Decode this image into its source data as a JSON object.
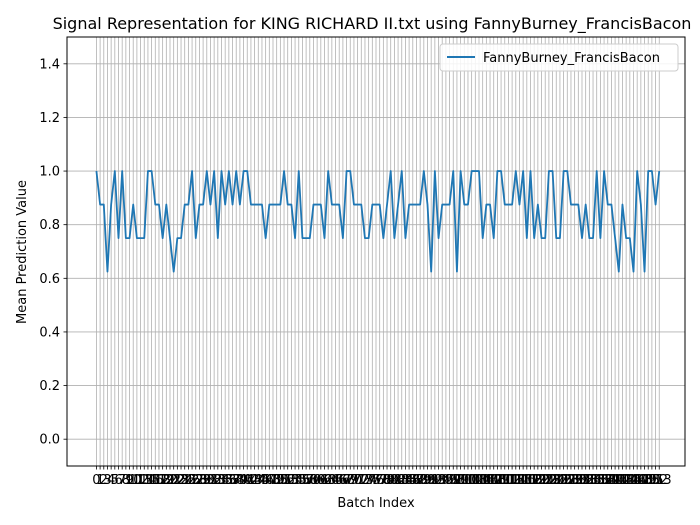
{
  "chart_data": {
    "type": "line",
    "title": "Signal Representation for KING RICHARD II.txt using FannyBurney_FrancisBacon",
    "xlabel": "Batch Index",
    "ylabel": "Mean Prediction Value",
    "ylim": [
      -0.1,
      1.5
    ],
    "xlim": [
      -8,
      160
    ],
    "yticks": [
      "0.0",
      "0.2",
      "0.4",
      "0.6",
      "0.8",
      "1.0",
      "1.2",
      "1.4"
    ],
    "grid": true,
    "legend_position": "top-right",
    "series": [
      {
        "name": "FannyBurney_FrancisBacon",
        "color": "#1f77b4",
        "values": [
          1.0,
          0.875,
          0.875,
          0.625,
          0.875,
          1.0,
          0.75,
          1.0,
          0.75,
          0.75,
          0.875,
          0.75,
          0.75,
          0.75,
          1.0,
          1.0,
          0.875,
          0.875,
          0.75,
          0.875,
          0.75,
          0.625,
          0.75,
          0.75,
          0.875,
          0.875,
          1.0,
          0.75,
          0.875,
          0.875,
          1.0,
          0.875,
          1.0,
          0.75,
          1.0,
          0.875,
          1.0,
          0.875,
          1.0,
          0.875,
          1.0,
          1.0,
          0.875,
          0.875,
          0.875,
          0.875,
          0.75,
          0.875,
          0.875,
          0.875,
          0.875,
          1.0,
          0.875,
          0.875,
          0.75,
          1.0,
          0.75,
          0.75,
          0.75,
          0.875,
          0.875,
          0.875,
          0.75,
          1.0,
          0.875,
          0.875,
          0.875,
          0.75,
          1.0,
          1.0,
          0.875,
          0.875,
          0.875,
          0.75,
          0.75,
          0.875,
          0.875,
          0.875,
          0.75,
          0.875,
          1.0,
          0.75,
          0.875,
          1.0,
          0.75,
          0.875,
          0.875,
          0.875,
          0.875,
          1.0,
          0.875,
          0.625,
          1.0,
          0.75,
          0.875,
          0.875,
          0.875,
          1.0,
          0.625,
          1.0,
          0.875,
          0.875,
          1.0,
          1.0,
          1.0,
          0.75,
          0.875,
          0.875,
          0.75,
          1.0,
          1.0,
          0.875,
          0.875,
          0.875,
          1.0,
          0.875,
          1.0,
          0.75,
          1.0,
          0.75,
          0.875,
          0.75,
          0.75,
          1.0,
          1.0,
          0.75,
          0.75,
          1.0,
          1.0,
          0.875,
          0.875,
          0.875,
          0.75,
          0.875,
          0.75,
          0.75,
          1.0,
          0.75,
          1.0,
          0.875,
          0.875,
          0.75,
          0.625,
          0.875,
          0.75,
          0.75,
          0.625,
          1.0,
          0.875,
          0.625,
          1.0,
          1.0,
          0.875,
          1.0
        ]
      }
    ]
  }
}
